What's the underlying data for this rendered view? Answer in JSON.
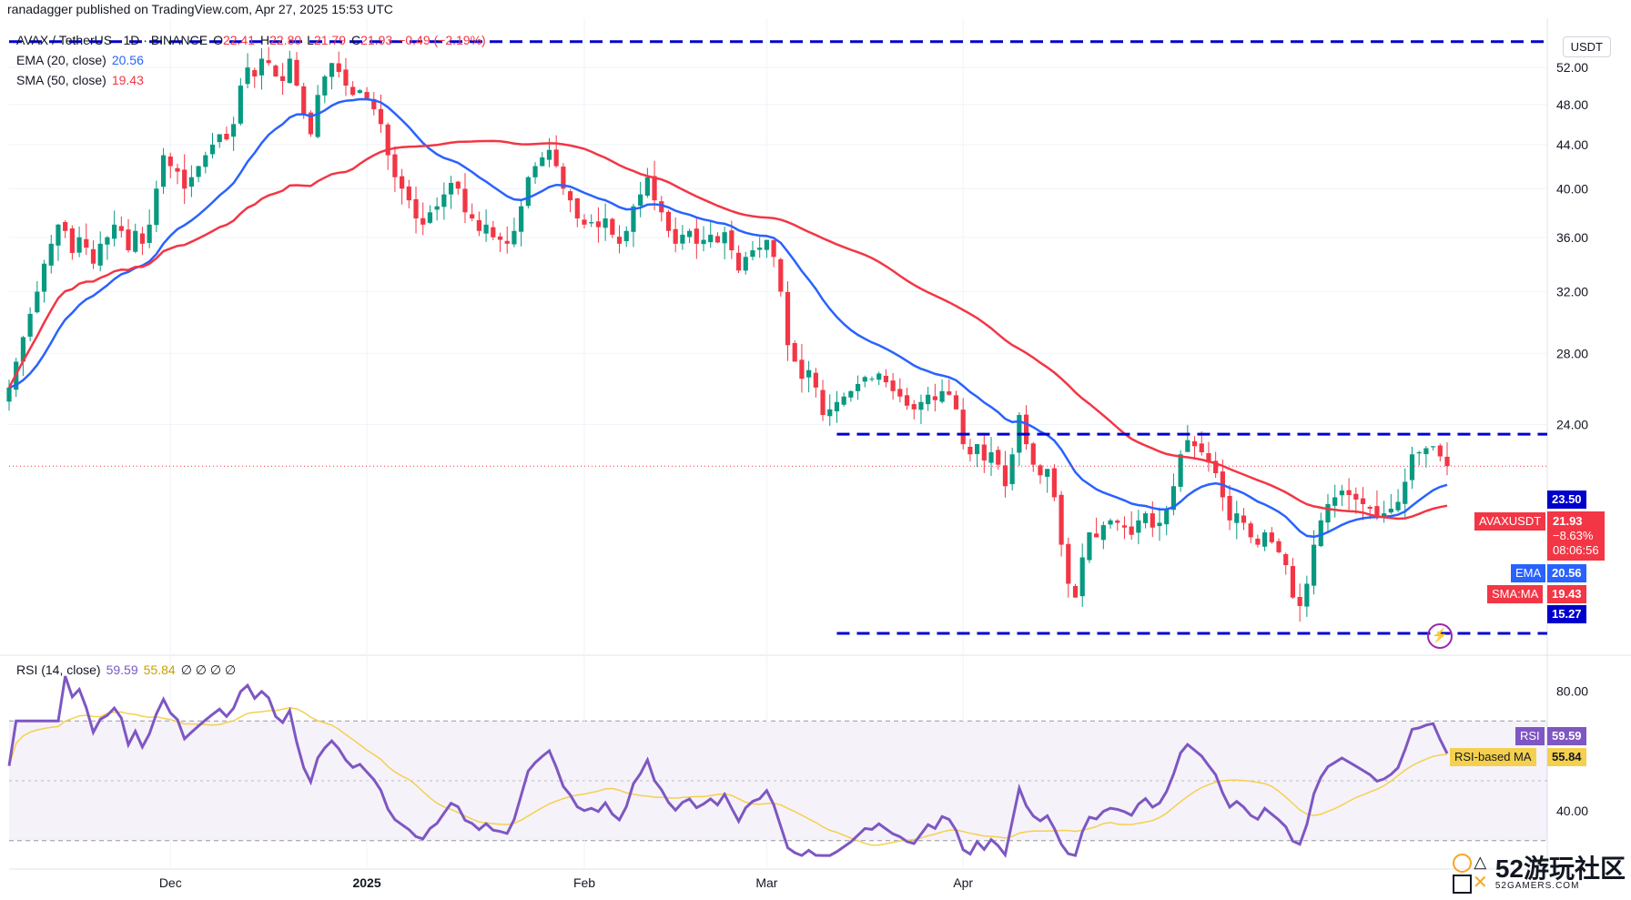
{
  "header": {
    "published": "ranadagger published on TradingView.com, Apr 27, 2025 15:53 UTC",
    "symbol": "AVAX / TetherUS · 1D · BINANCE",
    "ohlc": {
      "o_label": "O",
      "o": "22.41",
      "h_label": "H",
      "h": "22.80",
      "l_label": "L",
      "l": "21.79",
      "c_label": "C",
      "c": "21.93",
      "change": "−0.49 (−2.19%)"
    },
    "ema_label": "EMA (20, close)",
    "ema_value": "20.56",
    "sma_label": "SMA (50, close)",
    "sma_value": "19.43",
    "rsi_label": "RSI (14, close)",
    "rsi_value": "59.59",
    "rsi_ma_value": "55.84",
    "rsi_extra": "∅ ∅ ∅ ∅",
    "currency": "USDT"
  },
  "price_tags": {
    "resistance": "23.50",
    "symbol_tag": "AVAXUSDT",
    "last": "21.93",
    "change_pct": "−8.63%",
    "countdown": "08:06:56",
    "ema_tag": "EMA",
    "ema": "20.56",
    "sma_tag": "SMA:MA",
    "sma": "19.43",
    "support": "15.27"
  },
  "rsi_tags": {
    "rsi_tag": "RSI",
    "rsi": "59.59",
    "ma_tag": "RSI-based MA",
    "ma": "55.84"
  },
  "watermark": {
    "brand": "52游玩社区",
    "sub": "52GAMERS.COM"
  },
  "colors": {
    "up": "#089981",
    "down": "#f23645",
    "ema": "#2962ff",
    "sma": "#f23645",
    "rsi": "#7e57c2",
    "rsi_ma": "#f5d04e",
    "level": "#0000cc"
  },
  "chart_data": [
    {
      "type": "candlestick",
      "title": "AVAX / TetherUS · 1D · BINANCE",
      "x_ticks": [
        "Dec",
        "2025",
        "Feb",
        "Mar",
        "Apr"
      ],
      "y_ticks": [
        "52.00",
        "48.00",
        "44.00",
        "40.00",
        "36.00",
        "32.00",
        "28.00",
        "24.00"
      ],
      "ylim": [
        15,
        54
      ],
      "log_scale": true,
      "levels": [
        {
          "label": "23.50",
          "value": 23.5
        },
        {
          "label": "15.27",
          "value": 15.27
        },
        {
          "label": "",
          "value": 55.0
        }
      ],
      "close": [
        26,
        27.5,
        29,
        30.5,
        32,
        34,
        35.5,
        37,
        36.5,
        34.8,
        36,
        35.2,
        34,
        35.5,
        36,
        37,
        36.5,
        35,
        36.5,
        35.5,
        37,
        40,
        43,
        42,
        41.5,
        40,
        41,
        42,
        43,
        44,
        45,
        44.5,
        46,
        50,
        52,
        51,
        53,
        52.5,
        51,
        50.5,
        53,
        50,
        47,
        45,
        49,
        51,
        52.5,
        51.5,
        50,
        49,
        49.5,
        48.5,
        47.5,
        46,
        43,
        41,
        40,
        39,
        37.5,
        37,
        38,
        38.5,
        39.5,
        40.5,
        40,
        38,
        37.5,
        36.5,
        37,
        36,
        35.8,
        35.5,
        36.5,
        38.5,
        41,
        42,
        42.8,
        43.5,
        42,
        40,
        39,
        37.5,
        37,
        37.2,
        36.8,
        37.5,
        36.2,
        35.5,
        36.5,
        38.5,
        39.5,
        41,
        39,
        38,
        36.5,
        35.5,
        36.2,
        36.5,
        35.5,
        35.8,
        36.2,
        35.6,
        36.4,
        35,
        33.5,
        34.5,
        35,
        35.2,
        35.8,
        34.5,
        32,
        28.5,
        27.5,
        26.5,
        27,
        26,
        24.5,
        24.8,
        25.2,
        25.5,
        25.8,
        26.2,
        26.6,
        26.5,
        26.8,
        26.3,
        25.8,
        25.5,
        25,
        24.8,
        25.2,
        25.6,
        25.3,
        25.8,
        25.6,
        24.8,
        23,
        22.5,
        23,
        22.2,
        22.6,
        22,
        21,
        22.5,
        24.5,
        23,
        22,
        21.5,
        21.8,
        20.5,
        18.5,
        17,
        16.5,
        18,
        19,
        18.8,
        19.3,
        19.5,
        19.4,
        19.2,
        18.9,
        19.5,
        19.8,
        19.2,
        19.4,
        20,
        21,
        22.5,
        23.2,
        22.9,
        22.6,
        22.1,
        21.6,
        20.5,
        19.5,
        19.8,
        19.4,
        18.8,
        18.5,
        19,
        18.6,
        18.2,
        17.7,
        16.5,
        16.2,
        17,
        18.5,
        19.5,
        20.2,
        20.5,
        20.8,
        20.6,
        20.4,
        20.2,
        20,
        19.7,
        19.8,
        20,
        20.3,
        21.2,
        22.5,
        22.6,
        22.8,
        22.9,
        22.4,
        21.93
      ],
      "ema20": {
        "name": "EMA (20, close)",
        "last": 20.56
      },
      "sma50": {
        "name": "SMA (50, close)",
        "last": 19.43
      }
    },
    {
      "type": "line",
      "title": "RSI (14, close)",
      "y_ticks": [
        "80.00",
        "40.00"
      ],
      "ylim": [
        22,
        92
      ],
      "band": [
        30,
        70
      ],
      "series": [
        {
          "name": "RSI",
          "last": 59.59
        },
        {
          "name": "RSI-based MA",
          "last": 55.84
        }
      ]
    }
  ]
}
